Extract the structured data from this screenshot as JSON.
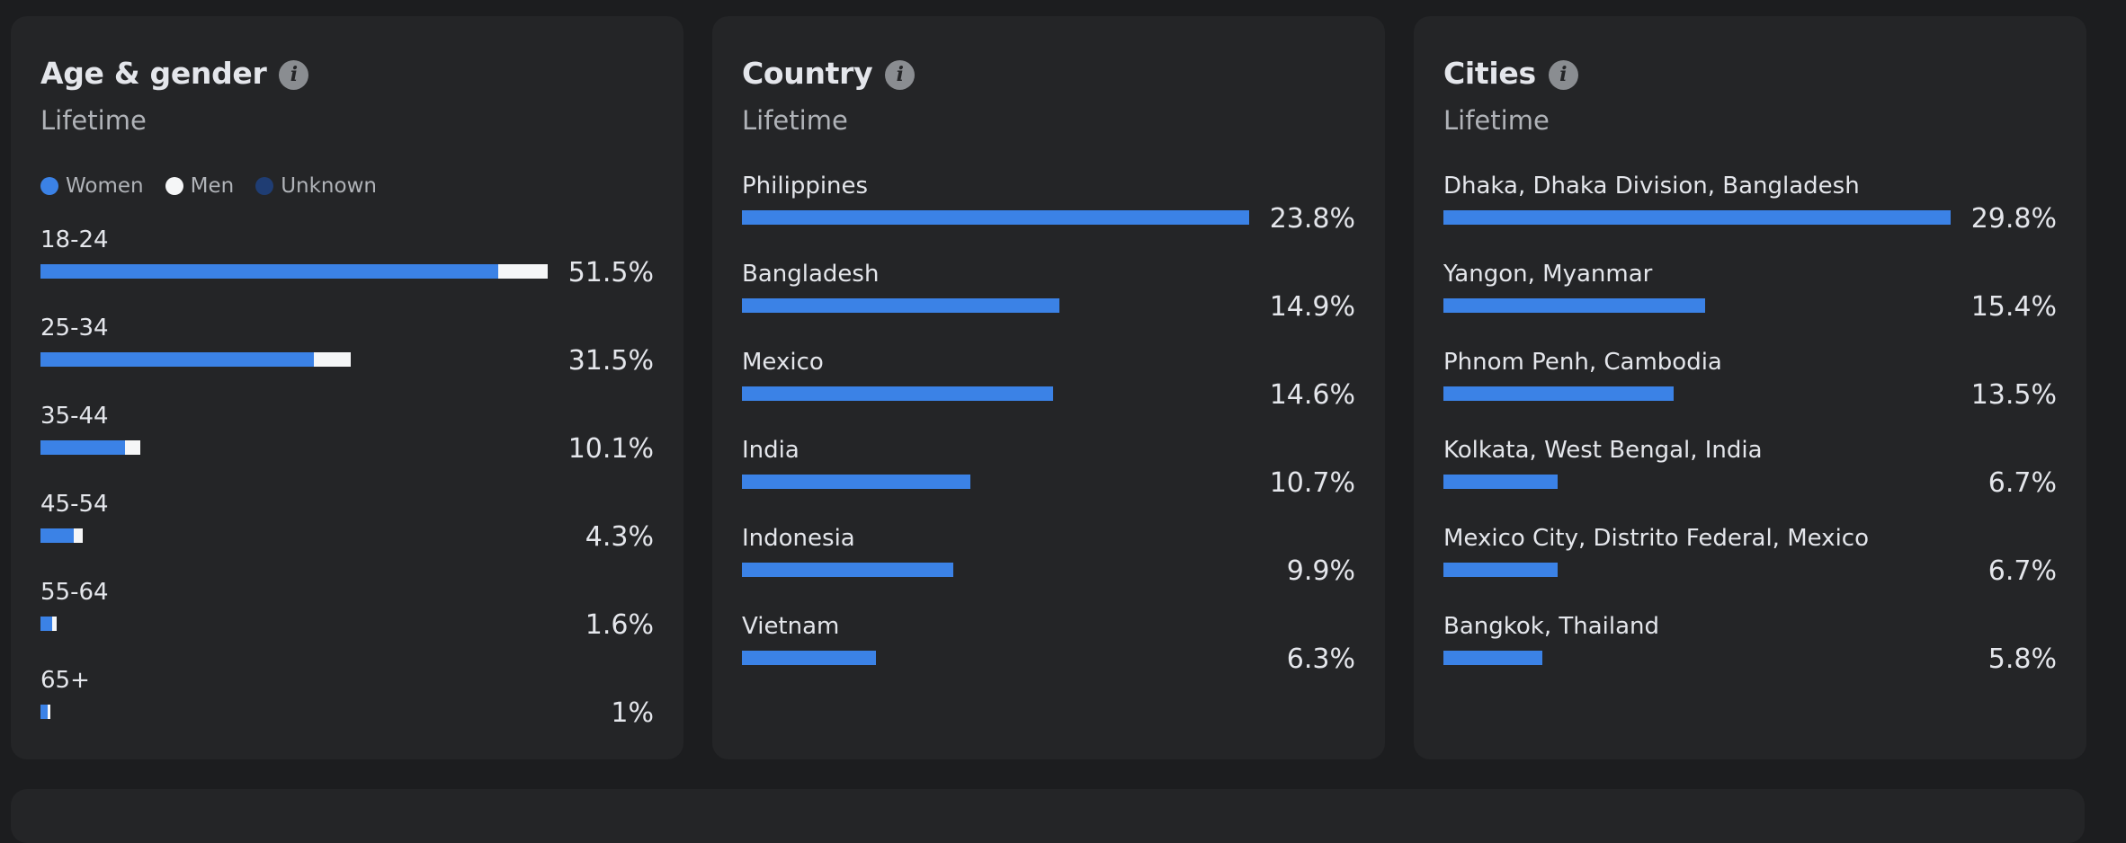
{
  "colors": {
    "women": "#3b82e6",
    "men": "#f5f6f7",
    "unknown": "#1f3d73",
    "bar": "#3b82e6"
  },
  "cards": [
    {
      "id": "age-gender",
      "title": "Age & gender",
      "subtitle": "Lifetime",
      "legend": [
        {
          "label": "Women",
          "color": "#3b82e6"
        },
        {
          "label": "Men",
          "color": "#f5f6f7"
        },
        {
          "label": "Unknown",
          "color": "#1f3d73"
        }
      ],
      "chart_data": {
        "type": "bar",
        "orientation": "horizontal",
        "stacked": true,
        "categories": [
          "18-24",
          "25-34",
          "35-44",
          "45-54",
          "55-64",
          "65+"
        ],
        "series": [
          {
            "name": "Women",
            "values": [
              46.5,
              27.8,
              8.6,
              3.4,
              1.2,
              0.7
            ]
          },
          {
            "name": "Men",
            "values": [
              5.0,
              3.7,
              1.5,
              0.9,
              0.4,
              0.3
            ]
          },
          {
            "name": "Unknown",
            "values": [
              0,
              0,
              0,
              0,
              0,
              0
            ]
          }
        ],
        "totals": [
          "51.5%",
          "31.5%",
          "10.1%",
          "4.3%",
          "1.6%",
          "1%"
        ],
        "xlim": [
          0,
          51.5
        ]
      }
    },
    {
      "id": "country",
      "title": "Country",
      "subtitle": "Lifetime",
      "chart_data": {
        "type": "bar",
        "orientation": "horizontal",
        "categories": [
          "Philippines",
          "Bangladesh",
          "Mexico",
          "India",
          "Indonesia",
          "Vietnam"
        ],
        "values": [
          23.8,
          14.9,
          14.6,
          10.7,
          9.9,
          6.3
        ],
        "labels": [
          "23.8%",
          "14.9%",
          "14.6%",
          "10.7%",
          "9.9%",
          "6.3%"
        ],
        "xlim": [
          0,
          23.8
        ]
      }
    },
    {
      "id": "cities",
      "title": "Cities",
      "subtitle": "Lifetime",
      "chart_data": {
        "type": "bar",
        "orientation": "horizontal",
        "categories": [
          "Dhaka, Dhaka Division, Bangladesh",
          "Yangon, Myanmar",
          "Phnom Penh, Cambodia",
          "Kolkata, West Bengal, India",
          "Mexico City, Distrito Federal, Mexico",
          "Bangkok, Thailand"
        ],
        "values": [
          29.8,
          15.4,
          13.5,
          6.7,
          6.7,
          5.8
        ],
        "labels": [
          "29.8%",
          "15.4%",
          "13.5%",
          "6.7%",
          "6.7%",
          "5.8%"
        ],
        "xlim": [
          0,
          29.8
        ]
      }
    }
  ]
}
